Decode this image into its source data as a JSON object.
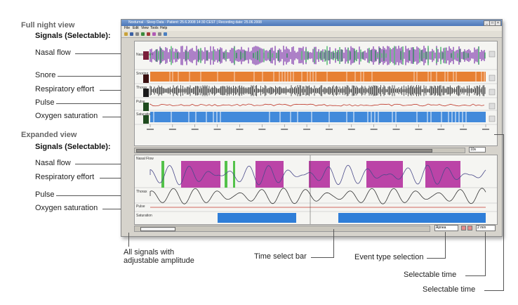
{
  "sections": {
    "full_night": "Full night view",
    "expanded": "Expanded view",
    "signals_selectable": "Signals (Selectable):"
  },
  "full_signals": [
    "Nasal flow",
    "Snore",
    "Respiratory effort",
    "Pulse",
    "Oxygen saturation"
  ],
  "exp_signals": [
    "Nasal flow",
    "Respiratory effort",
    "Pulse",
    "Oxygen saturation"
  ],
  "captions": {
    "amplitude_1": "All signals with",
    "amplitude_2": "adjustable amplitude",
    "time_select_bar": "Time select bar",
    "event_type_selection": "Event type selection",
    "selectable_time_1": "Selectable time",
    "selectable_time_2": "Selectable time"
  },
  "window": {
    "title": "Noxturnal - Sleep Data - Patient: 25.6.2008 14:30 CEST | Recording date: 25.06.2008",
    "menu": [
      "File",
      "Edit",
      "View",
      "Tools",
      "Help"
    ],
    "channels_full": [
      "Nasal Flow",
      "Snoring",
      "Thorax",
      "Pulse",
      "Saturation"
    ],
    "channels_exp": [
      "Nasal Flow",
      "Thorax",
      "Pulse",
      "Saturation"
    ],
    "range_1": "10s",
    "range_2": "Apnea",
    "range_3": "2 min"
  },
  "colors": {
    "nasal_green": "#2fae55",
    "nasal_purple": "#8e4fb5",
    "snore_orange": "#e5731e",
    "spo2_blue": "#2f7ed8",
    "event_magenta": "#b0249a",
    "event_green": "#53c24a"
  }
}
